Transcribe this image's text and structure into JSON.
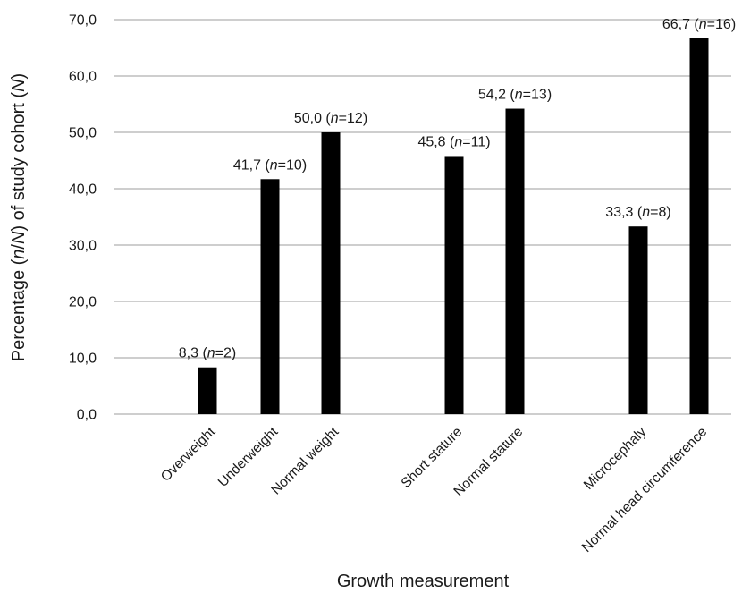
{
  "chart_data": {
    "type": "bar",
    "categories": [
      "Overweight",
      "Underweight",
      "Normal weight",
      "Short stature",
      "Normal stature",
      "Microcephaly",
      "Normal head circumference"
    ],
    "groups": [
      [
        0,
        1,
        2
      ],
      [
        3,
        4
      ],
      [
        5,
        6
      ]
    ],
    "values": [
      8.3,
      41.7,
      50.0,
      45.8,
      54.2,
      33.3,
      66.7
    ],
    "data_labels": [
      {
        "value": "8,3",
        "n": "2"
      },
      {
        "value": "41,7",
        "n": "10"
      },
      {
        "value": "50,0",
        "n": "12"
      },
      {
        "value": "45,8",
        "n": "11"
      },
      {
        "value": "54,2",
        "n": "13"
      },
      {
        "value": "33,3",
        "n": "8"
      },
      {
        "value": "66,7",
        "n": "16"
      }
    ],
    "xlabel": "Growth measurement",
    "ylabel": "Percentage (n/N) of study cohort (N)",
    "ylim": [
      0,
      70
    ],
    "yticks": [
      "0,0",
      "10,0",
      "20,0",
      "30,0",
      "40,0",
      "50,0",
      "60,0",
      "70,0"
    ],
    "grid": true,
    "bar_color": "#000000",
    "grid_color": "#bdbdbd"
  }
}
